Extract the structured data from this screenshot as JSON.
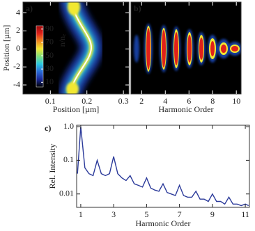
{
  "chart_data": [
    {
      "type": "heatmap",
      "panel_label": "a)",
      "xlabel": "Position [µm]",
      "ylabel": "Position [µm]",
      "xlim": [
        0.025,
        0.315
      ],
      "xticks": [
        0.1,
        0.2,
        0.3
      ],
      "ylim": [
        -5,
        5.2
      ],
      "yticks": [
        4,
        2,
        0,
        -2,
        -4
      ],
      "colorbar_label": "n/nₑ",
      "clim": [
        3,
        95
      ],
      "cticks": [
        90,
        70,
        50,
        30,
        10
      ],
      "colormap": [
        "#000000",
        "#1a2a9a",
        "#2a6ad8",
        "#29c8e0",
        "#7fe07a",
        "#f2e830",
        "#f08a20",
        "#e0201a",
        "#9a0a0a"
      ]
    },
    {
      "type": "heatmap",
      "panel_label": "b)",
      "xlabel": "Harmonic Order",
      "xlim": [
        1.1,
        10.4
      ],
      "xticks": [
        2,
        4,
        6,
        8,
        10
      ]
    },
    {
      "type": "line",
      "panel_label": "c)",
      "xlabel": "Harmonic Order",
      "ylabel": "Rel. Intensity",
      "log_y": true,
      "color": "#2b3a9a",
      "xlim": [
        0.75,
        11.25
      ],
      "xticks": [
        1,
        3,
        5,
        7,
        9,
        11
      ],
      "ylim": [
        0.004,
        1.1
      ],
      "yticks": [
        {
          "value": 1,
          "label": "1.0"
        },
        0.1,
        0.01
      ],
      "x": [
        0.8,
        1.0,
        1.25,
        1.5,
        1.75,
        2.0,
        2.25,
        2.5,
        2.75,
        3.0,
        3.25,
        3.5,
        3.75,
        4.0,
        4.25,
        4.5,
        4.75,
        5.0,
        5.25,
        5.5,
        5.75,
        6.0,
        6.25,
        6.5,
        6.75,
        7.0,
        7.25,
        7.5,
        7.75,
        8.0,
        8.25,
        8.5,
        8.75,
        9.0,
        9.25,
        9.5,
        9.75,
        10.0,
        10.25,
        10.5,
        10.75,
        11.0,
        11.2
      ],
      "values": [
        0.04,
        1.0,
        0.06,
        0.04,
        0.035,
        0.1,
        0.04,
        0.035,
        0.04,
        0.13,
        0.04,
        0.03,
        0.025,
        0.035,
        0.02,
        0.018,
        0.016,
        0.03,
        0.015,
        0.013,
        0.012,
        0.02,
        0.011,
        0.01,
        0.009,
        0.018,
        0.009,
        0.008,
        0.008,
        0.012,
        0.007,
        0.007,
        0.006,
        0.01,
        0.006,
        0.006,
        0.005,
        0.008,
        0.005,
        0.005,
        0.0045,
        0.005,
        0.0045
      ]
    }
  ]
}
